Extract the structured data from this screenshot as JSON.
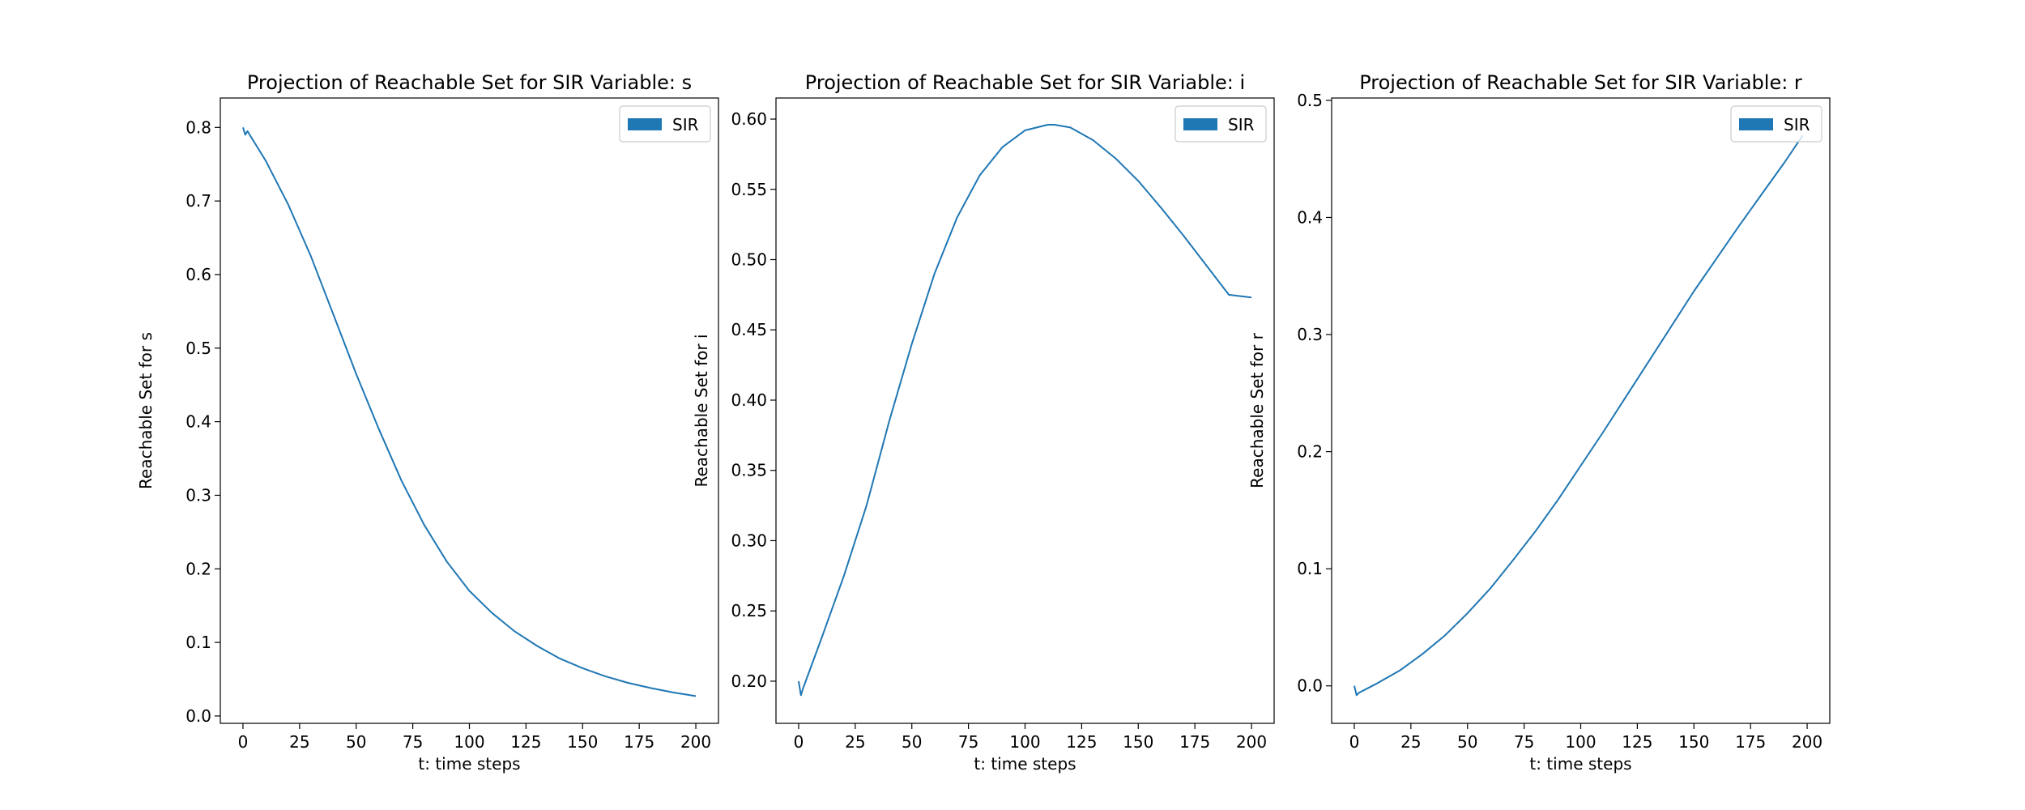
{
  "chart_data": [
    {
      "type": "line",
      "title": "Projection of Reachable Set for SIR Variable: s",
      "xlabel": "t: time steps",
      "ylabel": "Reachable Set for s",
      "xlim": [
        -10,
        210
      ],
      "ylim": [
        -0.01,
        0.84
      ],
      "xticks": [
        0,
        25,
        50,
        75,
        100,
        125,
        150,
        175,
        200
      ],
      "xtick_labels": [
        "0",
        "25",
        "50",
        "75",
        "100",
        "125",
        "150",
        "175",
        "200"
      ],
      "yticks": [
        0.0,
        0.1,
        0.2,
        0.3,
        0.4,
        0.5,
        0.6,
        0.7,
        0.8
      ],
      "ytick_labels": [
        "0.0",
        "0.1",
        "0.2",
        "0.3",
        "0.4",
        "0.5",
        "0.6",
        "0.7",
        "0.8"
      ],
      "legend": {
        "placement": "top-right",
        "entries": [
          "SIR"
        ]
      },
      "grid": false,
      "series": [
        {
          "name": "SIR",
          "color": "#1f77b4",
          "x": [
            0,
            1,
            2,
            10,
            20,
            30,
            40,
            50,
            60,
            70,
            80,
            90,
            100,
            110,
            120,
            130,
            140,
            150,
            160,
            170,
            180,
            190,
            200
          ],
          "y": [
            0.8,
            0.79,
            0.795,
            0.755,
            0.695,
            0.625,
            0.545,
            0.465,
            0.39,
            0.32,
            0.26,
            0.21,
            0.17,
            0.14,
            0.115,
            0.095,
            0.078,
            0.065,
            0.054,
            0.045,
            0.038,
            0.032,
            0.027
          ]
        }
      ]
    },
    {
      "type": "line",
      "title": "Projection of Reachable Set for SIR Variable: i",
      "xlabel": "t: time steps",
      "ylabel": "Reachable Set for i",
      "xlim": [
        -10,
        210
      ],
      "ylim": [
        0.17,
        0.615
      ],
      "xticks": [
        0,
        25,
        50,
        75,
        100,
        125,
        150,
        175,
        200
      ],
      "xtick_labels": [
        "0",
        "25",
        "50",
        "75",
        "100",
        "125",
        "150",
        "175",
        "200"
      ],
      "yticks": [
        0.2,
        0.25,
        0.3,
        0.35,
        0.4,
        0.45,
        0.5,
        0.55,
        0.6
      ],
      "ytick_labels": [
        "0.20",
        "0.25",
        "0.30",
        "0.35",
        "0.40",
        "0.45",
        "0.50",
        "0.55",
        "0.60"
      ],
      "legend": {
        "placement": "top-right",
        "entries": [
          "SIR"
        ]
      },
      "grid": false,
      "series": [
        {
          "name": "SIR",
          "color": "#1f77b4",
          "x": [
            0,
            1,
            2,
            10,
            20,
            30,
            40,
            50,
            60,
            70,
            80,
            90,
            100,
            110,
            113,
            120,
            130,
            140,
            150,
            160,
            170,
            180,
            190,
            200
          ],
          "y": [
            0.2,
            0.19,
            0.195,
            0.23,
            0.275,
            0.325,
            0.385,
            0.44,
            0.49,
            0.53,
            0.56,
            0.58,
            0.592,
            0.596,
            0.596,
            0.594,
            0.585,
            0.572,
            0.556,
            0.537,
            0.517,
            0.496,
            0.475,
            0.473
          ]
        }
      ]
    },
    {
      "type": "line",
      "title": "Projection of Reachable Set for SIR Variable: r",
      "xlabel": "t: time steps",
      "ylabel": "Reachable Set for r",
      "xlim": [
        -10,
        210
      ],
      "ylim": [
        -0.032,
        0.502
      ],
      "xticks": [
        0,
        25,
        50,
        75,
        100,
        125,
        150,
        175,
        200
      ],
      "xtick_labels": [
        "0",
        "25",
        "50",
        "75",
        "100",
        "125",
        "150",
        "175",
        "200"
      ],
      "yticks": [
        0.0,
        0.1,
        0.2,
        0.3,
        0.4,
        0.5
      ],
      "ytick_labels": [
        "0.0",
        "0.1",
        "0.2",
        "0.3",
        "0.4",
        "0.5"
      ],
      "legend": {
        "placement": "top-right",
        "entries": [
          "SIR"
        ]
      },
      "grid": false,
      "series": [
        {
          "name": "SIR",
          "color": "#1f77b4",
          "x": [
            0,
            1,
            2,
            10,
            20,
            30,
            40,
            50,
            60,
            70,
            80,
            90,
            100,
            110,
            120,
            130,
            140,
            150,
            160,
            170,
            180,
            190,
            198
          ],
          "y": [
            0.0,
            -0.008,
            -0.006,
            0.002,
            0.013,
            0.027,
            0.043,
            0.062,
            0.083,
            0.107,
            0.132,
            0.159,
            0.188,
            0.217,
            0.247,
            0.277,
            0.307,
            0.337,
            0.365,
            0.393,
            0.42,
            0.447,
            0.47
          ]
        }
      ]
    }
  ]
}
